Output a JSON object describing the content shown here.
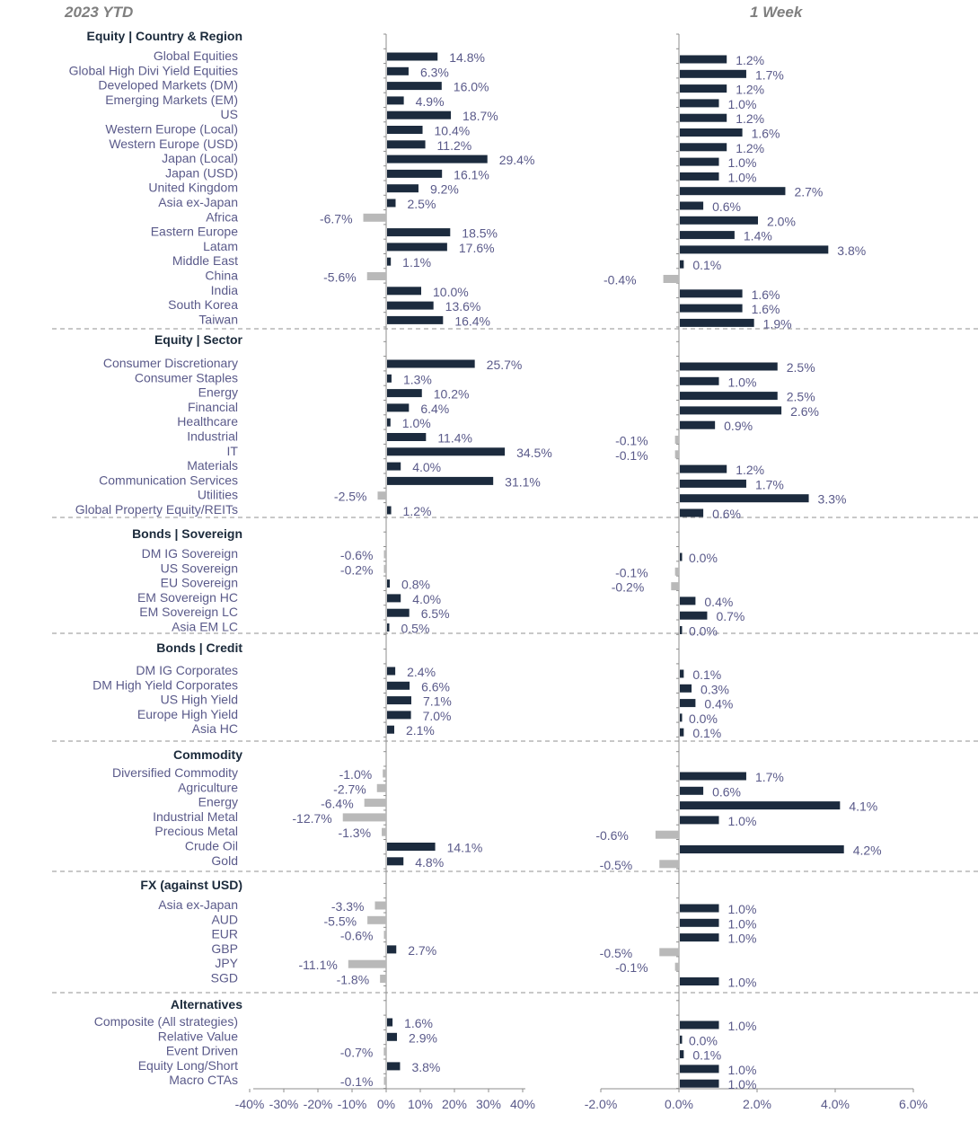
{
  "chart_data": {
    "type": "bar",
    "orientation": "horizontal",
    "panels": [
      {
        "title": "2023 YTD",
        "xlim": [
          -40,
          40
        ],
        "ticks": [
          "-40%",
          "-30%",
          "-20%",
          "-10%",
          "0%",
          "10%",
          "20%",
          "30%",
          "40%"
        ],
        "unit": "%"
      },
      {
        "title": "1 Week",
        "xlim": [
          -2,
          6
        ],
        "ticks": [
          "-2.0%",
          "0.0%",
          "2.0%",
          "4.0%",
          "6.0%"
        ],
        "unit": "%"
      }
    ],
    "colors": {
      "positive": "#1c2b3e",
      "negative": "#b9b9b9",
      "divider": "#a6a6a6",
      "label": "#5a5a8a"
    },
    "sections": [
      {
        "title": "Equity | Country & Region",
        "rows": [
          {
            "label": "Global Equities",
            "ytd": 14.8,
            "wk": 1.2
          },
          {
            "label": "Global High Divi Yield Equities",
            "ytd": 6.3,
            "wk": 1.7
          },
          {
            "label": "Developed Markets (DM)",
            "ytd": 16.0,
            "wk": 1.2
          },
          {
            "label": "Emerging Markets (EM)",
            "ytd": 4.9,
            "wk": 1.0
          },
          {
            "label": "US",
            "ytd": 18.7,
            "wk": 1.2
          },
          {
            "label": "Western Europe (Local)",
            "ytd": 10.4,
            "wk": 1.6
          },
          {
            "label": "Western Europe (USD)",
            "ytd": 11.2,
            "wk": 1.2
          },
          {
            "label": "Japan (Local)",
            "ytd": 29.4,
            "wk": 1.0
          },
          {
            "label": "Japan (USD)",
            "ytd": 16.1,
            "wk": 1.0
          },
          {
            "label": "United Kingdom",
            "ytd": 9.2,
            "wk": 2.7
          },
          {
            "label": "Asia ex-Japan",
            "ytd": 2.5,
            "wk": 0.6
          },
          {
            "label": "Africa",
            "ytd": -6.7,
            "wk": 2.0
          },
          {
            "label": "Eastern Europe",
            "ytd": 18.5,
            "wk": 1.4
          },
          {
            "label": "Latam",
            "ytd": 17.6,
            "wk": 3.8
          },
          {
            "label": "Middle East",
            "ytd": 1.1,
            "wk": 0.1
          },
          {
            "label": "China",
            "ytd": -5.6,
            "wk": -0.4
          },
          {
            "label": "India",
            "ytd": 10.0,
            "wk": 1.6
          },
          {
            "label": "South Korea",
            "ytd": 13.6,
            "wk": 1.6
          },
          {
            "label": "Taiwan",
            "ytd": 16.4,
            "wk": 1.9
          }
        ]
      },
      {
        "title": "Equity | Sector",
        "rows": [
          {
            "label": "Consumer Discretionary",
            "ytd": 25.7,
            "wk": 2.5
          },
          {
            "label": "Consumer Staples",
            "ytd": 1.3,
            "wk": 1.0
          },
          {
            "label": "Energy",
            "ytd": 10.2,
            "wk": 2.5
          },
          {
            "label": "Financial",
            "ytd": 6.4,
            "wk": 2.6
          },
          {
            "label": "Healthcare",
            "ytd": 1.0,
            "wk": 0.9
          },
          {
            "label": "Industrial",
            "ytd": 11.4,
            "wk": -0.1
          },
          {
            "label": "IT",
            "ytd": 34.5,
            "wk": -0.1
          },
          {
            "label": "Materials",
            "ytd": 4.0,
            "wk": 1.2
          },
          {
            "label": "Communication Services",
            "ytd": 31.1,
            "wk": 1.7
          },
          {
            "label": "Utilities",
            "ytd": -2.5,
            "wk": 3.3
          },
          {
            "label": "Global Property Equity/REITs",
            "ytd": 1.2,
            "wk": 0.6
          }
        ]
      },
      {
        "title": "Bonds | Sovereign",
        "rows": [
          {
            "label": "DM IG Sovereign",
            "ytd": -0.6,
            "wk": 0.0
          },
          {
            "label": "US Sovereign",
            "ytd": -0.2,
            "wk": -0.1
          },
          {
            "label": "EU Sovereign",
            "ytd": 0.8,
            "wk": -0.2
          },
          {
            "label": "EM Sovereign HC",
            "ytd": 4.0,
            "wk": 0.4
          },
          {
            "label": "EM Sovereign LC",
            "ytd": 6.5,
            "wk": 0.7
          },
          {
            "label": "Asia EM LC",
            "ytd": 0.5,
            "wk": 0.0
          }
        ]
      },
      {
        "title": "Bonds | Credit",
        "rows": [
          {
            "label": "DM IG Corporates",
            "ytd": 2.4,
            "wk": 0.1
          },
          {
            "label": "DM High Yield Corporates",
            "ytd": 6.6,
            "wk": 0.3
          },
          {
            "label": "US High Yield",
            "ytd": 7.1,
            "wk": 0.4
          },
          {
            "label": "Europe High Yield",
            "ytd": 7.0,
            "wk": 0.0
          },
          {
            "label": "Asia HC",
            "ytd": 2.1,
            "wk": 0.1
          }
        ]
      },
      {
        "title": "Commodity",
        "rows": [
          {
            "label": "Diversified Commodity",
            "ytd": -1.0,
            "wk": 1.7
          },
          {
            "label": "Agriculture",
            "ytd": -2.7,
            "wk": 0.6
          },
          {
            "label": "Energy",
            "ytd": -6.4,
            "wk": 4.1
          },
          {
            "label": "Industrial Metal",
            "ytd": -12.7,
            "wk": 1.0
          },
          {
            "label": "Precious Metal",
            "ytd": -1.3,
            "wk": -0.6
          },
          {
            "label": "Crude Oil",
            "ytd": 14.1,
            "wk": 4.2
          },
          {
            "label": "Gold",
            "ytd": 4.8,
            "wk": -0.5
          }
        ]
      },
      {
        "title": "FX (against USD)",
        "rows": [
          {
            "label": "Asia ex-Japan",
            "ytd": -3.3,
            "wk": 1.0
          },
          {
            "label": "AUD",
            "ytd": -5.5,
            "wk": 1.0
          },
          {
            "label": "EUR",
            "ytd": -0.6,
            "wk": 1.0
          },
          {
            "label": "GBP",
            "ytd": 2.7,
            "wk": -0.5
          },
          {
            "label": "JPY",
            "ytd": -11.1,
            "wk": -0.1
          },
          {
            "label": "SGD",
            "ytd": -1.8,
            "wk": 1.0
          }
        ]
      },
      {
        "title": "Alternatives",
        "rows": [
          {
            "label": "Composite (All strategies)",
            "ytd": 1.6,
            "wk": 1.0
          },
          {
            "label": "Relative Value",
            "ytd": 2.9,
            "wk": 0.0
          },
          {
            "label": "Event Driven",
            "ytd": -0.7,
            "wk": 0.1
          },
          {
            "label": "Equity Long/Short",
            "ytd": 3.8,
            "wk": 1.0
          },
          {
            "label": "Macro CTAs",
            "ytd": -0.1,
            "wk": 1.0
          }
        ]
      }
    ]
  }
}
